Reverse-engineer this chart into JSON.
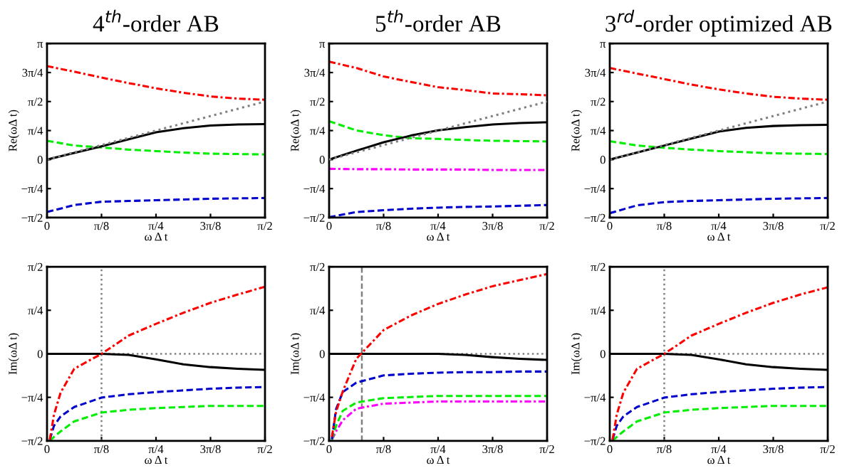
{
  "chart_data": [
    {
      "type": "line",
      "title": "4$^{th}$-order AB",
      "xlabel": "ω Δ t",
      "ylabel": "Re(ωΔ t)",
      "xlim": [
        0,
        1.5708
      ],
      "ylim": [
        -1.5708,
        3.1416
      ],
      "xticks": [
        0,
        {
          "value": 0.3927,
          "label": "π/8"
        },
        {
          "value": 0.7854,
          "label": "π/4"
        },
        {
          "value": 1.1781,
          "label": "3π/8"
        },
        {
          "value": 1.5708,
          "label": "π/2"
        }
      ],
      "yticks": [
        {
          "value": -1.5708,
          "label": "−π/2"
        },
        {
          "value": -0.7854,
          "label": "−π/4"
        },
        0,
        {
          "value": 0.7854,
          "label": "π/4"
        },
        {
          "value": 1.5708,
          "label": "π/2"
        },
        {
          "value": 2.3562,
          "label": "3π/4"
        },
        {
          "value": 3.1416,
          "label": "π"
        }
      ],
      "x": [
        0,
        0.196,
        0.393,
        0.589,
        0.785,
        0.982,
        1.178,
        1.374,
        1.57
      ],
      "grid": false,
      "series": [
        {
          "color": "#808080",
          "line_style": "dotted",
          "x": [
            0,
            1.57
          ],
          "values": [
            0,
            1.57
          ]
        },
        {
          "color": "#ff0000",
          "line_style": "dashdot",
          "values": [
            2.53,
            2.38,
            2.22,
            2.07,
            1.93,
            1.81,
            1.71,
            1.65,
            1.62
          ]
        },
        {
          "color": "#000000",
          "line_style": "solid",
          "values": [
            0,
            0.18,
            0.36,
            0.55,
            0.74,
            0.85,
            0.92,
            0.95,
            0.96
          ]
        },
        {
          "color": "#00ee00",
          "line_style": "dashed",
          "values": [
            0.51,
            0.38,
            0.33,
            0.27,
            0.23,
            0.19,
            0.16,
            0.15,
            0.14
          ]
        },
        {
          "color": "#0000cc",
          "line_style": "dashed",
          "values": [
            -1.42,
            -1.23,
            -1.14,
            -1.12,
            -1.1,
            -1.08,
            -1.06,
            -1.05,
            -1.04
          ]
        }
      ]
    },
    {
      "type": "line",
      "title": "5$^{th}$-order AB",
      "xlabel": "ω Δ t",
      "ylabel": "Re(ωΔ t)",
      "xlim": [
        0,
        1.5708
      ],
      "ylim": [
        -1.5708,
        3.1416
      ],
      "xticks": [
        0,
        {
          "value": 0.3927,
          "label": "π/8"
        },
        {
          "value": 0.7854,
          "label": "π/4"
        },
        {
          "value": 1.1781,
          "label": "3π/8"
        },
        {
          "value": 1.5708,
          "label": "π/2"
        }
      ],
      "yticks": [
        {
          "value": -1.5708,
          "label": "−π/2"
        },
        {
          "value": -0.7854,
          "label": "−π/4"
        },
        0,
        {
          "value": 0.7854,
          "label": "π/4"
        },
        {
          "value": 1.5708,
          "label": "π/2"
        },
        {
          "value": 2.3562,
          "label": "3π/4"
        },
        {
          "value": 3.1416,
          "label": "π"
        }
      ],
      "x": [
        0,
        0.196,
        0.393,
        0.589,
        0.785,
        0.982,
        1.178,
        1.374,
        1.57
      ],
      "grid": false,
      "series": [
        {
          "color": "#808080",
          "line_style": "dotted",
          "x": [
            0,
            1.57
          ],
          "values": [
            0,
            1.57
          ]
        },
        {
          "color": "#ff0000",
          "line_style": "dashdot",
          "values": [
            2.65,
            2.48,
            2.25,
            2.1,
            1.96,
            1.88,
            1.79,
            1.77,
            1.74
          ]
        },
        {
          "color": "#000000",
          "line_style": "solid",
          "values": [
            0,
            0.24,
            0.47,
            0.65,
            0.79,
            0.88,
            0.95,
            0.99,
            1.01
          ]
        },
        {
          "color": "#00ee00",
          "line_style": "dashed",
          "values": [
            1.04,
            0.79,
            0.66,
            0.58,
            0.56,
            0.53,
            0.51,
            0.5,
            0.49
          ]
        },
        {
          "color": "#ff00ff",
          "line_style": "dashdot",
          "values": [
            -0.25,
            -0.26,
            -0.26,
            -0.27,
            -0.27,
            -0.27,
            -0.28,
            -0.28,
            -0.28
          ]
        },
        {
          "color": "#0000cc",
          "line_style": "dashed",
          "values": [
            -1.56,
            -1.42,
            -1.37,
            -1.33,
            -1.3,
            -1.28,
            -1.27,
            -1.25,
            -1.23
          ]
        }
      ]
    },
    {
      "type": "line",
      "title": "3$^{rd}$-order optimized AB",
      "xlabel": "ω Δ t",
      "ylabel": "Re(ωΔ t)",
      "xlim": [
        0,
        1.5708
      ],
      "ylim": [
        -1.5708,
        3.1416
      ],
      "xticks": [
        0,
        {
          "value": 0.3927,
          "label": "π/8"
        },
        {
          "value": 0.7854,
          "label": "π/4"
        },
        {
          "value": 1.1781,
          "label": "3π/8"
        },
        {
          "value": 1.5708,
          "label": "π/2"
        }
      ],
      "yticks": [
        {
          "value": -1.5708,
          "label": "−π/2"
        },
        {
          "value": -0.7854,
          "label": "−π/4"
        },
        0,
        {
          "value": 0.7854,
          "label": "π/4"
        },
        {
          "value": 1.5708,
          "label": "π/2"
        },
        {
          "value": 2.3562,
          "label": "3π/4"
        },
        {
          "value": 3.1416,
          "label": "π"
        }
      ],
      "x": [
        0,
        0.196,
        0.393,
        0.589,
        0.785,
        0.982,
        1.178,
        1.374,
        1.57
      ],
      "grid": false,
      "series": [
        {
          "color": "#808080",
          "line_style": "dotted",
          "x": [
            0,
            1.57
          ],
          "values": [
            0,
            1.57
          ]
        },
        {
          "color": "#ff0000",
          "line_style": "dashdot",
          "values": [
            2.48,
            2.33,
            2.18,
            2.03,
            1.9,
            1.79,
            1.7,
            1.65,
            1.62
          ]
        },
        {
          "color": "#000000",
          "line_style": "solid",
          "values": [
            0,
            0.19,
            0.38,
            0.57,
            0.76,
            0.86,
            0.91,
            0.93,
            0.94
          ]
        },
        {
          "color": "#00ee00",
          "line_style": "dashed",
          "values": [
            0.5,
            0.38,
            0.32,
            0.27,
            0.23,
            0.2,
            0.17,
            0.16,
            0.15
          ]
        },
        {
          "color": "#0000cc",
          "line_style": "dashed",
          "values": [
            -1.45,
            -1.24,
            -1.15,
            -1.12,
            -1.1,
            -1.08,
            -1.06,
            -1.05,
            -1.04
          ]
        }
      ]
    },
    {
      "type": "line",
      "xlabel": "ω Δ t",
      "ylabel": "Im(ωΔ t)",
      "xlim": [
        0,
        1.5708
      ],
      "ylim": [
        -1.5708,
        1.5708
      ],
      "xticks": [
        0,
        {
          "value": 0.3927,
          "label": "π/8"
        },
        {
          "value": 0.7854,
          "label": "π/4"
        },
        {
          "value": 1.1781,
          "label": "3π/8"
        },
        {
          "value": 1.5708,
          "label": "π/2"
        }
      ],
      "yticks": [
        {
          "value": -1.5708,
          "label": "−π/2"
        },
        {
          "value": -0.7854,
          "label": "−π/4"
        },
        0,
        {
          "value": 0.7854,
          "label": "π/4"
        },
        {
          "value": 1.5708,
          "label": "π/2"
        }
      ],
      "x": [
        0.02,
        0.05,
        0.098,
        0.196,
        0.393,
        0.589,
        0.785,
        0.982,
        1.178,
        1.374,
        1.57
      ],
      "grid": false,
      "ref_lines": [
        {
          "axis": "y",
          "value": 0,
          "color": "#808080",
          "line_style": "dotted"
        },
        {
          "axis": "x",
          "value": 0.3927,
          "color": "#808080",
          "line_style": "dotted"
        }
      ],
      "series": [
        {
          "color": "#ff0000",
          "line_style": "dashdot",
          "values": [
            -1.55,
            -1.1,
            -0.7,
            -0.27,
            0,
            0.33,
            0.54,
            0.74,
            0.92,
            1.07,
            1.21
          ]
        },
        {
          "color": "#000000",
          "line_style": "solid",
          "x": [
            0,
            0.196,
            0.393,
            0.589,
            0.785,
            0.982,
            1.178,
            1.374,
            1.57
          ],
          "values": [
            0,
            0,
            0,
            -0.02,
            -0.1,
            -0.19,
            -0.24,
            -0.27,
            -0.29
          ]
        },
        {
          "color": "#0000cc",
          "line_style": "dashed",
          "values": [
            -1.55,
            -1.3,
            -1.13,
            -0.96,
            -0.79,
            -0.73,
            -0.69,
            -0.66,
            -0.63,
            -0.61,
            -0.6
          ]
        },
        {
          "color": "#00ee00",
          "line_style": "dashed",
          "values": [
            -1.57,
            -1.5,
            -1.4,
            -1.22,
            -1.06,
            -1.01,
            -0.98,
            -0.96,
            -0.94,
            -0.94,
            -0.94
          ]
        }
      ]
    },
    {
      "type": "line",
      "xlabel": "ω Δ t",
      "ylabel": "Im(ωΔ t)",
      "xlim": [
        0,
        1.5708
      ],
      "ylim": [
        -1.5708,
        1.5708
      ],
      "xticks": [
        0,
        {
          "value": 0.3927,
          "label": "π/8"
        },
        {
          "value": 0.7854,
          "label": "π/4"
        },
        {
          "value": 1.1781,
          "label": "3π/8"
        },
        {
          "value": 1.5708,
          "label": "π/2"
        }
      ],
      "yticks": [
        {
          "value": -1.5708,
          "label": "−π/2"
        },
        {
          "value": -0.7854,
          "label": "−π/4"
        },
        0,
        {
          "value": 0.7854,
          "label": "π/4"
        },
        {
          "value": 1.5708,
          "label": "π/2"
        }
      ],
      "x": [
        0.02,
        0.05,
        0.098,
        0.196,
        0.393,
        0.589,
        0.785,
        0.982,
        1.178,
        1.374,
        1.57
      ],
      "grid": false,
      "ref_lines": [
        {
          "axis": "y",
          "value": 0,
          "color": "#808080",
          "line_style": "dotted"
        },
        {
          "axis": "x",
          "value": 0.236,
          "color": "#808080",
          "line_style": "dashed"
        }
      ],
      "series": [
        {
          "color": "#ff0000",
          "line_style": "dashdot",
          "values": [
            -1.5,
            -1.05,
            -0.68,
            -0.09,
            0.43,
            0.69,
            0.9,
            1.07,
            1.22,
            1.33,
            1.44
          ]
        },
        {
          "color": "#000000",
          "line_style": "solid",
          "x": [
            0,
            0.196,
            0.393,
            0.589,
            0.785,
            0.982,
            1.178,
            1.374,
            1.57
          ],
          "values": [
            0,
            0,
            0,
            0,
            0,
            -0.02,
            -0.06,
            -0.09,
            -0.11
          ]
        },
        {
          "color": "#0000cc",
          "line_style": "dashed",
          "values": [
            -1.54,
            -1.0,
            -0.69,
            -0.52,
            -0.39,
            -0.36,
            -0.34,
            -0.33,
            -0.33,
            -0.32,
            -0.32
          ]
        },
        {
          "color": "#00ee00",
          "line_style": "dashed",
          "values": [
            -1.55,
            -1.3,
            -1.03,
            -0.88,
            -0.8,
            -0.78,
            -0.76,
            -0.76,
            -0.76,
            -0.76,
            -0.76
          ]
        },
        {
          "color": "#ff00ff",
          "line_style": "dashdot",
          "values": [
            -1.55,
            -1.4,
            -1.2,
            -0.99,
            -0.9,
            -0.88,
            -0.86,
            -0.86,
            -0.86,
            -0.86,
            -0.86
          ]
        }
      ]
    },
    {
      "type": "line",
      "xlabel": "ω Δ t",
      "ylabel": "Im(ωΔ t)",
      "xlim": [
        0,
        1.5708
      ],
      "ylim": [
        -1.5708,
        1.5708
      ],
      "xticks": [
        0,
        {
          "value": 0.3927,
          "label": "π/8"
        },
        {
          "value": 0.7854,
          "label": "π/4"
        },
        {
          "value": 1.1781,
          "label": "3π/8"
        },
        {
          "value": 1.5708,
          "label": "π/2"
        }
      ],
      "yticks": [
        {
          "value": -1.5708,
          "label": "−π/2"
        },
        {
          "value": -0.7854,
          "label": "−π/4"
        },
        0,
        {
          "value": 0.7854,
          "label": "π/4"
        },
        {
          "value": 1.5708,
          "label": "π/2"
        }
      ],
      "x": [
        0.02,
        0.05,
        0.098,
        0.196,
        0.393,
        0.589,
        0.785,
        0.982,
        1.178,
        1.374,
        1.57
      ],
      "grid": false,
      "ref_lines": [
        {
          "axis": "y",
          "value": 0,
          "color": "#808080",
          "line_style": "dotted"
        },
        {
          "axis": "x",
          "value": 0.3927,
          "color": "#808080",
          "line_style": "dotted"
        }
      ],
      "series": [
        {
          "color": "#ff0000",
          "line_style": "dashdot",
          "values": [
            -1.55,
            -1.1,
            -0.7,
            -0.27,
            0,
            0.33,
            0.54,
            0.74,
            0.92,
            1.07,
            1.2
          ]
        },
        {
          "color": "#000000",
          "line_style": "solid",
          "x": [
            0,
            0.196,
            0.393,
            0.589,
            0.785,
            0.982,
            1.178,
            1.374,
            1.57
          ],
          "values": [
            0,
            0,
            0,
            -0.02,
            -0.1,
            -0.19,
            -0.24,
            -0.27,
            -0.29
          ]
        },
        {
          "color": "#0000cc",
          "line_style": "dashed",
          "values": [
            -1.55,
            -1.3,
            -1.13,
            -0.96,
            -0.79,
            -0.73,
            -0.69,
            -0.66,
            -0.63,
            -0.61,
            -0.6
          ]
        },
        {
          "color": "#00ee00",
          "line_style": "dashed",
          "values": [
            -1.57,
            -1.5,
            -1.4,
            -1.22,
            -1.06,
            -1.01,
            -0.98,
            -0.96,
            -0.94,
            -0.94,
            -0.94
          ]
        }
      ]
    }
  ]
}
